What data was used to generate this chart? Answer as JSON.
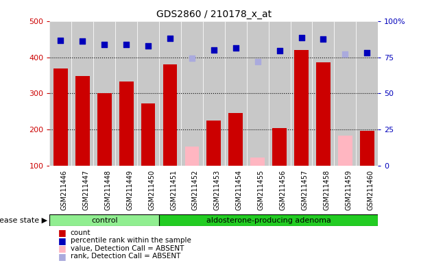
{
  "title": "GDS2860 / 210178_x_at",
  "samples": [
    "GSM211446",
    "GSM211447",
    "GSM211448",
    "GSM211449",
    "GSM211450",
    "GSM211451",
    "GSM211452",
    "GSM211453",
    "GSM211454",
    "GSM211455",
    "GSM211456",
    "GSM211457",
    "GSM211458",
    "GSM211459",
    "GSM211460"
  ],
  "count_values": [
    368,
    348,
    300,
    333,
    273,
    380,
    null,
    225,
    246,
    null,
    204,
    420,
    385,
    null,
    196
  ],
  "count_absent": [
    null,
    null,
    null,
    null,
    null,
    null,
    153,
    null,
    null,
    122,
    null,
    null,
    null,
    183,
    null
  ],
  "percentile_values": [
    446,
    445,
    435,
    436,
    431,
    452,
    null,
    420,
    425,
    null,
    418,
    454,
    450,
    null,
    413
  ],
  "percentile_absent": [
    null,
    null,
    null,
    null,
    null,
    null,
    397,
    null,
    null,
    388,
    null,
    null,
    null,
    408,
    null
  ],
  "ylim_left": [
    100,
    500
  ],
  "left_ticks": [
    100,
    200,
    300,
    400,
    500
  ],
  "right_ticks": [
    0,
    25,
    50,
    75,
    100
  ],
  "right_tick_labels": [
    "0",
    "25",
    "50",
    "75",
    "100%"
  ],
  "groups": [
    {
      "label": "control",
      "start": 0,
      "end": 4,
      "color": "#90EE90"
    },
    {
      "label": "aldosterone-producing adenoma",
      "start": 5,
      "end": 14,
      "color": "#22CC22"
    }
  ],
  "disease_state_label": "disease state",
  "bar_color_red": "#CC0000",
  "bar_color_pink": "#FFB6C1",
  "dot_color_blue": "#0000BB",
  "dot_color_lightblue": "#AAAADD",
  "bg_color": "#C8C8C8",
  "plot_bg": "#FFFFFF",
  "cell_line_color": "#AAAAAA"
}
